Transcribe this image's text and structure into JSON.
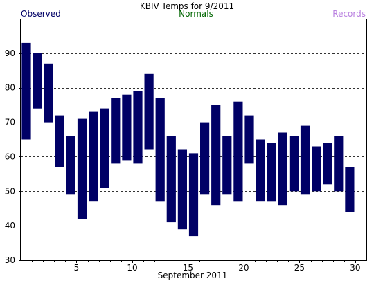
{
  "colors": {
    "bar": "#000066",
    "observed": "#000066",
    "normals": "#006600",
    "records": "#b980e0",
    "grid": "#333333",
    "axis": "#000000"
  },
  "legend": {
    "observed": "Observed",
    "normals": "Normals",
    "records": "Records"
  },
  "chart_data": {
    "type": "bar",
    "title": "KBIV Temps for 9/2011",
    "xlabel": "September 2011",
    "ylabel": "",
    "ylim": [
      30,
      100
    ],
    "xlim": [
      0,
      31
    ],
    "yticks": [
      30,
      40,
      50,
      60,
      70,
      80,
      90
    ],
    "xticks": [
      5,
      10,
      15,
      20,
      25,
      30
    ],
    "grid": true,
    "days": [
      1,
      2,
      3,
      4,
      5,
      6,
      7,
      8,
      9,
      10,
      11,
      12,
      13,
      14,
      15,
      16,
      17,
      18,
      19,
      20,
      21,
      22,
      23,
      24,
      25,
      26,
      27,
      28,
      29,
      30
    ],
    "series": [
      {
        "name": "Observed",
        "highs": [
          93,
          90,
          87,
          72,
          66,
          71,
          73,
          74,
          77,
          78,
          79,
          84,
          77,
          66,
          62,
          61,
          70,
          75,
          66,
          76,
          72,
          65,
          64,
          67,
          66,
          69,
          63,
          64,
          66,
          57
        ],
        "lows": [
          65,
          74,
          70,
          57,
          49,
          42,
          47,
          51,
          58,
          59,
          58,
          62,
          47,
          41,
          39,
          37,
          49,
          46,
          49,
          47,
          58,
          47,
          47,
          46,
          50,
          49,
          50,
          52,
          50,
          44
        ]
      }
    ]
  }
}
